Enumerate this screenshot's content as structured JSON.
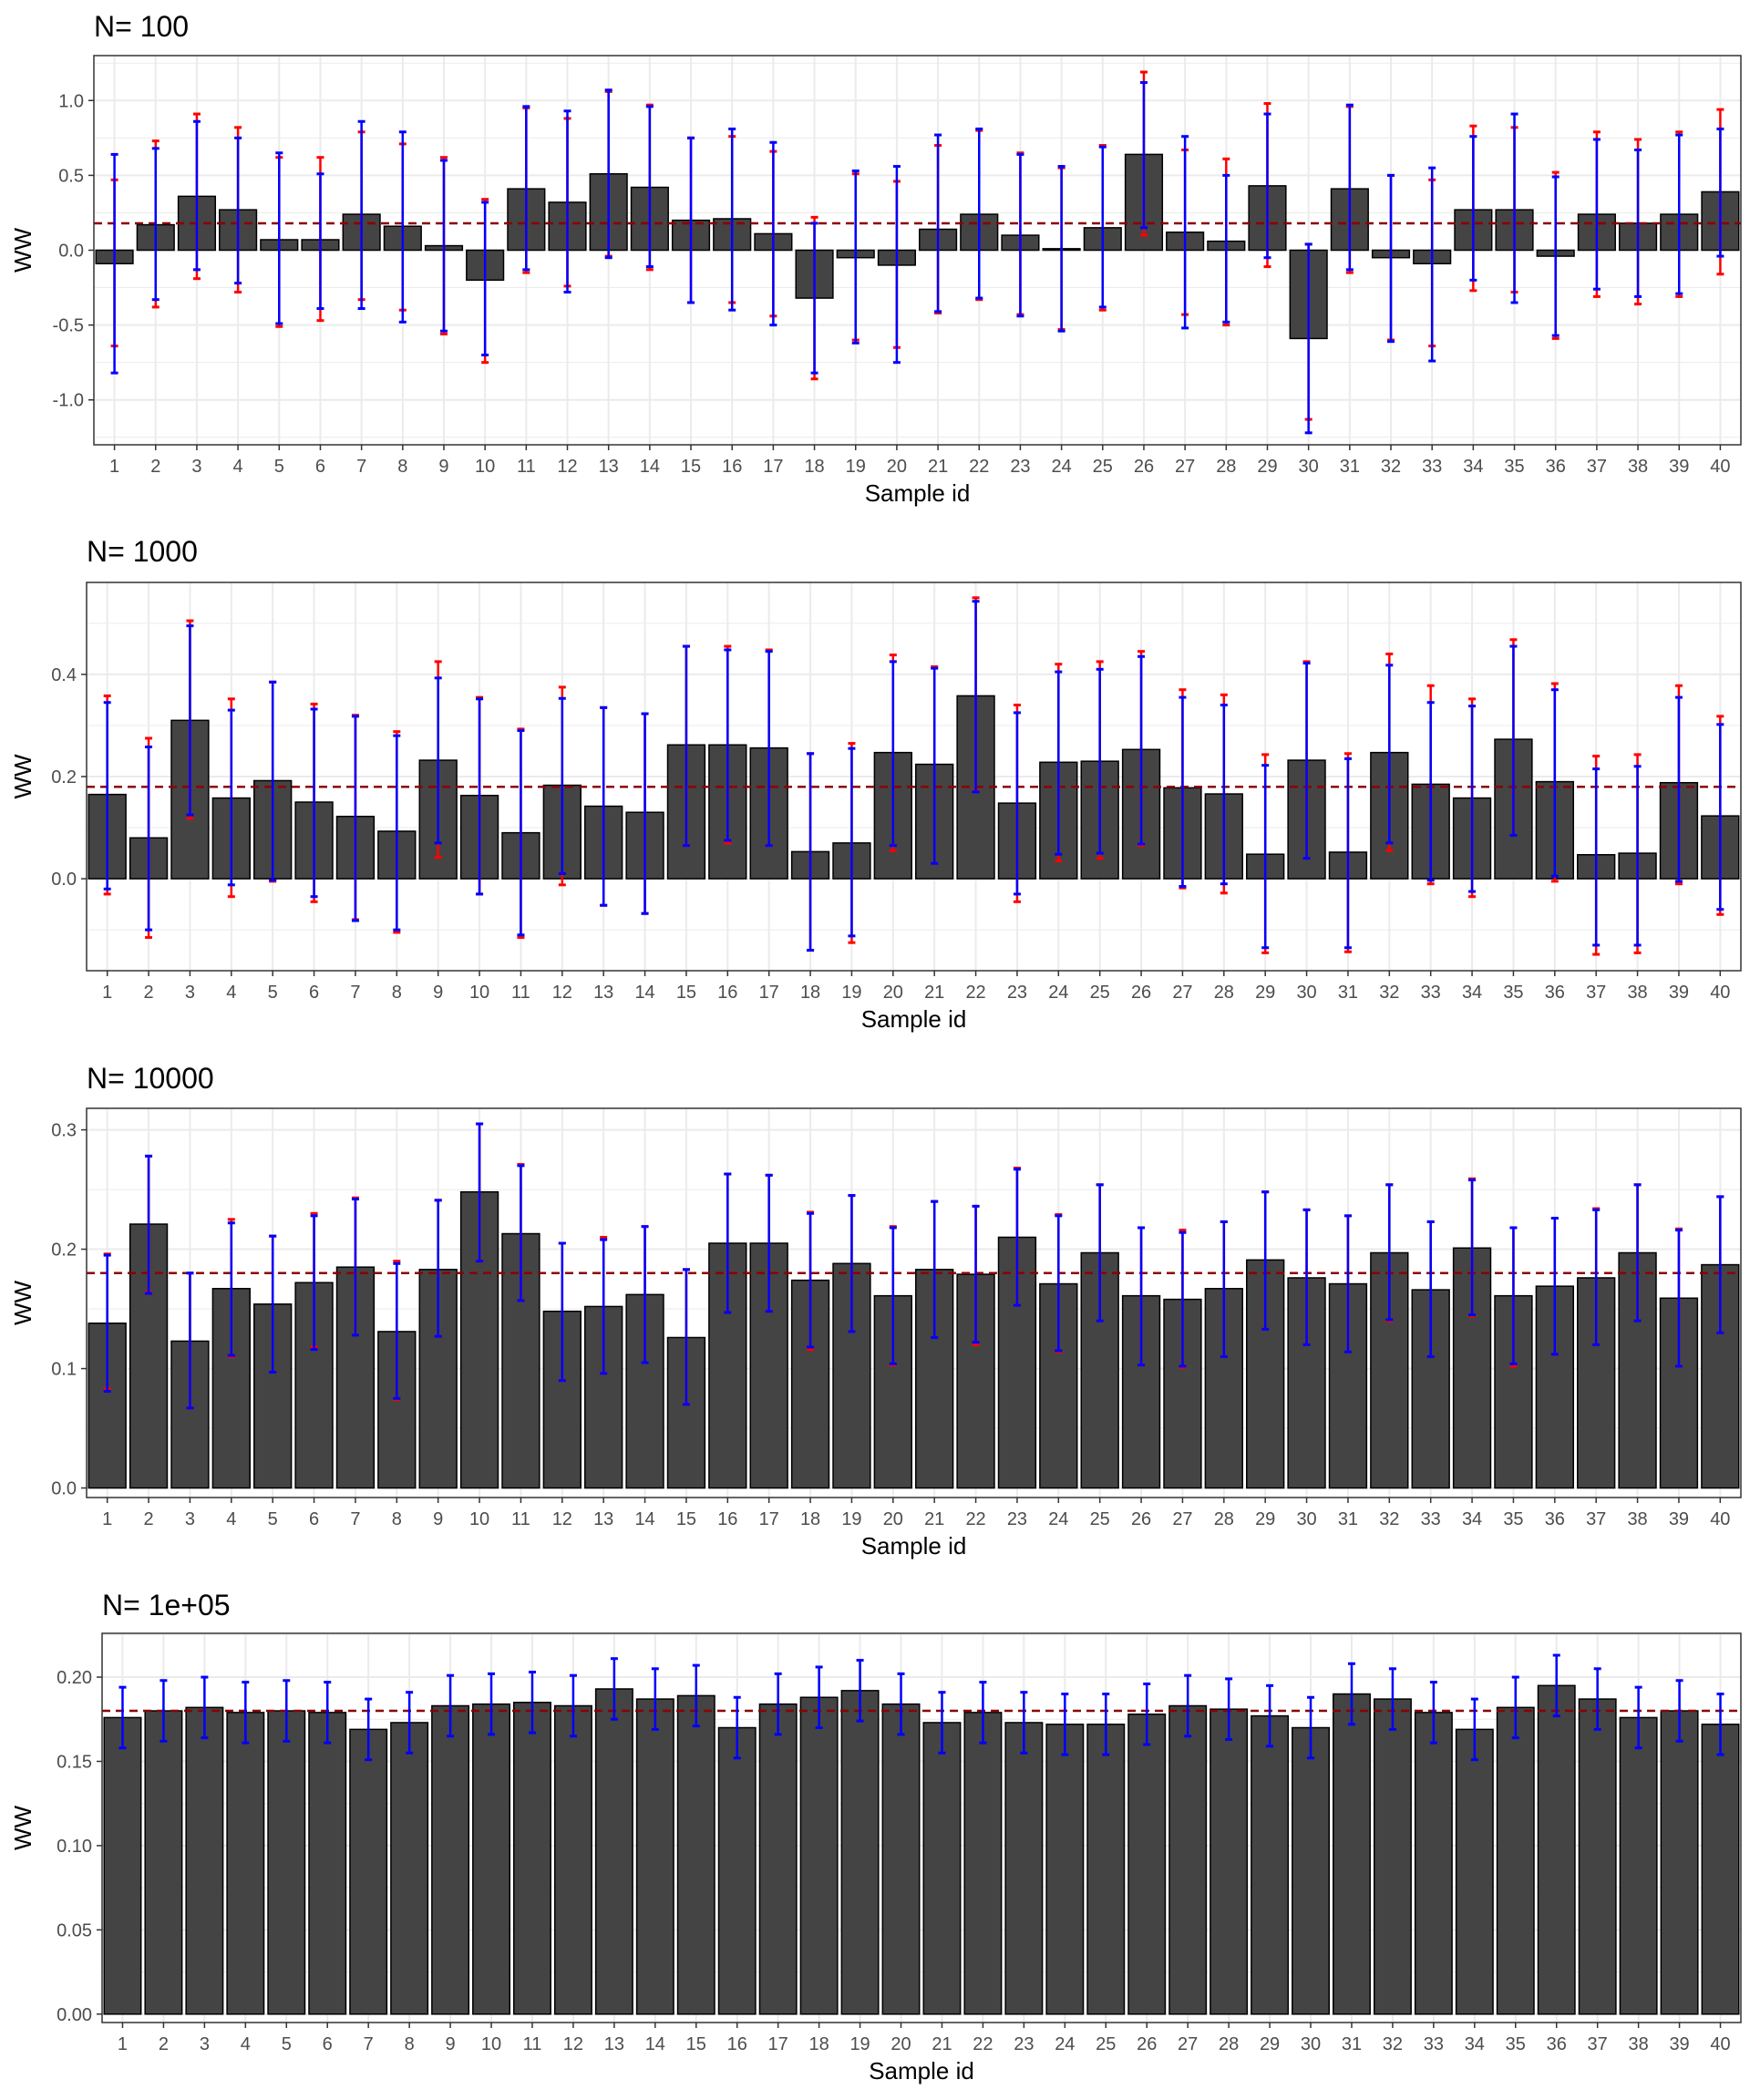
{
  "colors": {
    "bar_fill": "#444444",
    "bar_stroke": "#000000",
    "errorbar_blue": "#0000ff",
    "errorbar_red": "#ff0000",
    "reference_line": "#8b0000",
    "grid": "#ebebeb",
    "panel_border": "#333333"
  },
  "chart_data": [
    {
      "type": "bar",
      "title": "N= 100",
      "xlabel": "Sample id",
      "ylabel": "WW",
      "ylim": [
        -1.3,
        1.3
      ],
      "yticks": [
        1.0,
        0.5,
        0.0,
        -0.5,
        -1.0
      ],
      "ytick_labels": [
        "1.0",
        "0.5",
        "0.0",
        "-0.5",
        "-1.0"
      ],
      "reference_line": 0.18,
      "categories": [
        "1",
        "2",
        "3",
        "4",
        "5",
        "6",
        "7",
        "8",
        "9",
        "10",
        "11",
        "12",
        "13",
        "14",
        "15",
        "16",
        "17",
        "18",
        "19",
        "20",
        "21",
        "22",
        "23",
        "24",
        "25",
        "26",
        "27",
        "28",
        "29",
        "30",
        "31",
        "32",
        "33",
        "34",
        "35",
        "36",
        "37",
        "38",
        "39",
        "40"
      ],
      "values": [
        -0.09,
        0.17,
        0.36,
        0.27,
        0.07,
        0.07,
        0.24,
        0.16,
        0.03,
        -0.2,
        0.41,
        0.32,
        0.51,
        0.42,
        0.2,
        0.21,
        0.11,
        -0.32,
        -0.05,
        -0.1,
        0.14,
        0.24,
        0.1,
        0.01,
        0.15,
        0.64,
        0.12,
        0.06,
        0.43,
        -0.59,
        0.41,
        -0.05,
        -0.09,
        0.27,
        0.27,
        -0.04,
        0.24,
        0.18,
        0.24,
        0.39
      ],
      "ci_blue_lower": [
        -0.82,
        -0.33,
        -0.13,
        -0.22,
        -0.49,
        -0.39,
        -0.39,
        -0.48,
        -0.54,
        -0.7,
        -0.13,
        -0.28,
        -0.05,
        -0.11,
        -0.35,
        -0.4,
        -0.5,
        -0.82,
        -0.62,
        -0.75,
        -0.41,
        -0.32,
        -0.44,
        -0.54,
        -0.38,
        0.15,
        -0.52,
        -0.48,
        -0.05,
        -1.22,
        -0.13,
        -0.61,
        -0.74,
        -0.2,
        -0.35,
        -0.57,
        -0.26,
        -0.31,
        -0.29,
        -0.04
      ],
      "ci_blue_upper": [
        0.64,
        0.68,
        0.86,
        0.75,
        0.65,
        0.51,
        0.86,
        0.79,
        0.6,
        0.32,
        0.96,
        0.93,
        1.07,
        0.96,
        0.75,
        0.81,
        0.72,
        0.18,
        0.53,
        0.56,
        0.77,
        0.81,
        0.64,
        0.56,
        0.69,
        1.12,
        0.76,
        0.5,
        0.91,
        0.04,
        0.97,
        0.5,
        0.55,
        0.76,
        0.91,
        0.49,
        0.74,
        0.67,
        0.77,
        0.81
      ],
      "ci_red_lower": [
        -0.64,
        -0.38,
        -0.19,
        -0.28,
        -0.51,
        -0.47,
        -0.33,
        -0.4,
        -0.56,
        -0.75,
        -0.15,
        -0.24,
        -0.04,
        -0.13,
        -0.35,
        -0.35,
        -0.44,
        -0.86,
        -0.6,
        -0.65,
        -0.42,
        -0.33,
        -0.43,
        -0.53,
        -0.4,
        0.1,
        -0.43,
        -0.5,
        -0.11,
        -1.13,
        -0.15,
        -0.6,
        -0.64,
        -0.27,
        -0.28,
        -0.59,
        -0.31,
        -0.36,
        -0.31,
        -0.16
      ],
      "ci_red_upper": [
        0.47,
        0.73,
        0.91,
        0.82,
        0.62,
        0.62,
        0.79,
        0.71,
        0.62,
        0.34,
        0.95,
        0.88,
        1.06,
        0.97,
        0.75,
        0.76,
        0.66,
        0.22,
        0.51,
        0.46,
        0.7,
        0.8,
        0.65,
        0.55,
        0.7,
        1.19,
        0.67,
        0.61,
        0.98,
        0.04,
        0.96,
        0.5,
        0.47,
        0.83,
        0.82,
        0.52,
        0.79,
        0.74,
        0.79,
        0.94
      ]
    },
    {
      "type": "bar",
      "title": "N= 1000",
      "xlabel": "Sample id",
      "ylabel": "WW",
      "ylim": [
        -0.18,
        0.58
      ],
      "yticks": [
        0.4,
        0.2,
        0.0
      ],
      "ytick_labels": [
        "0.4",
        "0.2",
        "0.0"
      ],
      "reference_line": 0.18,
      "categories": [
        "1",
        "2",
        "3",
        "4",
        "5",
        "6",
        "7",
        "8",
        "9",
        "10",
        "11",
        "12",
        "13",
        "14",
        "15",
        "16",
        "17",
        "18",
        "19",
        "20",
        "21",
        "22",
        "23",
        "24",
        "25",
        "26",
        "27",
        "28",
        "29",
        "30",
        "31",
        "32",
        "33",
        "34",
        "35",
        "36",
        "37",
        "38",
        "39",
        "40"
      ],
      "values": [
        0.165,
        0.08,
        0.31,
        0.158,
        0.192,
        0.15,
        0.122,
        0.093,
        0.232,
        0.163,
        0.09,
        0.183,
        0.142,
        0.13,
        0.262,
        0.262,
        0.256,
        0.053,
        0.07,
        0.247,
        0.224,
        0.358,
        0.148,
        0.228,
        0.23,
        0.253,
        0.178,
        0.166,
        0.048,
        0.232,
        0.052,
        0.247,
        0.185,
        0.158,
        0.273,
        0.19,
        0.047,
        0.05,
        0.188,
        0.123
      ],
      "ci_blue_lower": [
        -0.02,
        -0.1,
        0.125,
        -0.012,
        -0.003,
        -0.035,
        -0.082,
        -0.1,
        0.07,
        -0.03,
        -0.11,
        0.01,
        -0.052,
        -0.068,
        0.065,
        0.075,
        0.065,
        -0.14,
        -0.112,
        0.065,
        0.03,
        0.17,
        -0.03,
        0.048,
        0.05,
        0.068,
        -0.015,
        -0.01,
        -0.135,
        0.04,
        -0.135,
        0.07,
        -0.003,
        -0.025,
        0.085,
        0.005,
        -0.13,
        -0.13,
        -0.005,
        -0.06
      ],
      "ci_blue_upper": [
        0.345,
        0.258,
        0.495,
        0.33,
        0.385,
        0.332,
        0.318,
        0.28,
        0.393,
        0.352,
        0.29,
        0.353,
        0.335,
        0.323,
        0.455,
        0.448,
        0.445,
        0.245,
        0.255,
        0.425,
        0.412,
        0.543,
        0.325,
        0.405,
        0.41,
        0.435,
        0.355,
        0.34,
        0.222,
        0.422,
        0.235,
        0.418,
        0.345,
        0.338,
        0.455,
        0.37,
        0.215,
        0.22,
        0.355,
        0.302
      ],
      "ci_red_lower": [
        -0.03,
        -0.115,
        0.118,
        -0.035,
        -0.005,
        -0.045,
        -0.08,
        -0.105,
        0.042,
        -0.03,
        -0.115,
        -0.012,
        -0.052,
        -0.068,
        0.065,
        0.07,
        0.065,
        -0.14,
        -0.125,
        0.055,
        0.03,
        0.172,
        -0.045,
        0.035,
        0.04,
        0.065,
        -0.018,
        -0.028,
        -0.145,
        0.04,
        -0.143,
        0.055,
        -0.01,
        -0.035,
        0.085,
        -0.005,
        -0.148,
        -0.145,
        -0.01,
        -0.07
      ],
      "ci_red_upper": [
        0.358,
        0.275,
        0.505,
        0.352,
        0.385,
        0.342,
        0.32,
        0.288,
        0.425,
        0.355,
        0.293,
        0.375,
        0.335,
        0.323,
        0.455,
        0.455,
        0.448,
        0.245,
        0.265,
        0.438,
        0.415,
        0.55,
        0.34,
        0.42,
        0.425,
        0.445,
        0.37,
        0.36,
        0.243,
        0.425,
        0.245,
        0.44,
        0.378,
        0.352,
        0.468,
        0.382,
        0.24,
        0.243,
        0.378,
        0.318
      ]
    },
    {
      "type": "bar",
      "title": "N= 10000",
      "xlabel": "Sample id",
      "ylabel": "WW",
      "ylim": [
        -0.008,
        0.318
      ],
      "yticks": [
        0.3,
        0.2,
        0.1,
        0.0
      ],
      "ytick_labels": [
        "0.3",
        "0.2",
        "0.1",
        "0.0"
      ],
      "reference_line": 0.18,
      "categories": [
        "1",
        "2",
        "3",
        "4",
        "5",
        "6",
        "7",
        "8",
        "9",
        "10",
        "11",
        "12",
        "13",
        "14",
        "15",
        "16",
        "17",
        "18",
        "19",
        "20",
        "21",
        "22",
        "23",
        "24",
        "25",
        "26",
        "27",
        "28",
        "29",
        "30",
        "31",
        "32",
        "33",
        "34",
        "35",
        "36",
        "37",
        "38",
        "39",
        "40"
      ],
      "values": [
        0.138,
        0.221,
        0.123,
        0.167,
        0.154,
        0.172,
        0.185,
        0.131,
        0.183,
        0.248,
        0.213,
        0.148,
        0.152,
        0.162,
        0.126,
        0.205,
        0.205,
        0.174,
        0.188,
        0.161,
        0.183,
        0.179,
        0.21,
        0.171,
        0.197,
        0.161,
        0.158,
        0.167,
        0.191,
        0.176,
        0.171,
        0.197,
        0.166,
        0.201,
        0.161,
        0.169,
        0.176,
        0.197,
        0.159,
        0.187
      ],
      "ci_blue_lower": [
        0.081,
        0.163,
        0.067,
        0.111,
        0.097,
        0.116,
        0.128,
        0.075,
        0.127,
        0.19,
        0.157,
        0.09,
        0.096,
        0.105,
        0.07,
        0.147,
        0.148,
        0.118,
        0.131,
        0.104,
        0.126,
        0.122,
        0.153,
        0.115,
        0.14,
        0.103,
        0.102,
        0.11,
        0.133,
        0.12,
        0.114,
        0.141,
        0.11,
        0.145,
        0.104,
        0.112,
        0.12,
        0.14,
        0.102,
        0.13
      ],
      "ci_blue_upper": [
        0.195,
        0.278,
        0.18,
        0.222,
        0.211,
        0.228,
        0.242,
        0.188,
        0.241,
        0.305,
        0.27,
        0.205,
        0.208,
        0.219,
        0.183,
        0.263,
        0.262,
        0.23,
        0.245,
        0.218,
        0.24,
        0.236,
        0.267,
        0.228,
        0.254,
        0.218,
        0.214,
        0.223,
        0.248,
        0.233,
        0.228,
        0.254,
        0.223,
        0.258,
        0.218,
        0.226,
        0.233,
        0.254,
        0.216,
        0.244
      ],
      "ci_red_lower": [
        0.083,
        0.164,
        0.067,
        0.11,
        0.097,
        0.118,
        0.128,
        0.074,
        0.127,
        0.19,
        0.157,
        0.09,
        0.096,
        0.105,
        0.07,
        0.147,
        0.148,
        0.116,
        0.131,
        0.103,
        0.126,
        0.12,
        0.153,
        0.114,
        0.14,
        0.103,
        0.101,
        0.11,
        0.133,
        0.12,
        0.114,
        0.14,
        0.11,
        0.144,
        0.102,
        0.112,
        0.12,
        0.14,
        0.102,
        0.13
      ],
      "ci_red_upper": [
        0.196,
        0.278,
        0.18,
        0.225,
        0.211,
        0.23,
        0.243,
        0.19,
        0.241,
        0.305,
        0.271,
        0.205,
        0.21,
        0.219,
        0.183,
        0.263,
        0.262,
        0.231,
        0.245,
        0.219,
        0.24,
        0.236,
        0.268,
        0.229,
        0.254,
        0.218,
        0.216,
        0.223,
        0.248,
        0.233,
        0.228,
        0.254,
        0.223,
        0.259,
        0.218,
        0.226,
        0.234,
        0.254,
        0.217,
        0.244
      ]
    },
    {
      "type": "bar",
      "title": "N= 1e+05",
      "xlabel": "Sample id",
      "ylabel": "WW",
      "ylim": [
        -0.005,
        0.226
      ],
      "yticks": [
        0.2,
        0.15,
        0.1,
        0.05,
        0.0
      ],
      "ytick_labels": [
        "0.20",
        "0.15",
        "0.10",
        "0.05",
        "0.00"
      ],
      "reference_line": 0.18,
      "categories": [
        "1",
        "2",
        "3",
        "4",
        "5",
        "6",
        "7",
        "8",
        "9",
        "10",
        "11",
        "12",
        "13",
        "14",
        "15",
        "16",
        "17",
        "18",
        "19",
        "20",
        "21",
        "22",
        "23",
        "24",
        "25",
        "26",
        "27",
        "28",
        "29",
        "30",
        "31",
        "32",
        "33",
        "34",
        "35",
        "36",
        "37",
        "38",
        "39",
        "40"
      ],
      "values": [
        0.176,
        0.18,
        0.182,
        0.179,
        0.18,
        0.179,
        0.169,
        0.173,
        0.183,
        0.184,
        0.185,
        0.183,
        0.193,
        0.187,
        0.189,
        0.17,
        0.184,
        0.188,
        0.192,
        0.184,
        0.173,
        0.179,
        0.173,
        0.172,
        0.172,
        0.178,
        0.183,
        0.181,
        0.177,
        0.17,
        0.19,
        0.187,
        0.179,
        0.169,
        0.182,
        0.195,
        0.187,
        0.176,
        0.18,
        0.172
      ],
      "ci_blue_lower": [
        0.158,
        0.162,
        0.164,
        0.161,
        0.162,
        0.161,
        0.151,
        0.155,
        0.165,
        0.166,
        0.167,
        0.165,
        0.175,
        0.169,
        0.171,
        0.152,
        0.166,
        0.17,
        0.174,
        0.166,
        0.155,
        0.161,
        0.155,
        0.154,
        0.154,
        0.16,
        0.165,
        0.163,
        0.159,
        0.152,
        0.172,
        0.169,
        0.161,
        0.151,
        0.164,
        0.177,
        0.169,
        0.158,
        0.162,
        0.154
      ],
      "ci_blue_upper": [
        0.194,
        0.198,
        0.2,
        0.197,
        0.198,
        0.197,
        0.187,
        0.191,
        0.201,
        0.202,
        0.203,
        0.201,
        0.211,
        0.205,
        0.207,
        0.188,
        0.202,
        0.206,
        0.21,
        0.202,
        0.191,
        0.197,
        0.191,
        0.19,
        0.19,
        0.196,
        0.201,
        0.199,
        0.195,
        0.188,
        0.208,
        0.205,
        0.197,
        0.187,
        0.2,
        0.213,
        0.205,
        0.194,
        0.198,
        0.19
      ]
    }
  ]
}
